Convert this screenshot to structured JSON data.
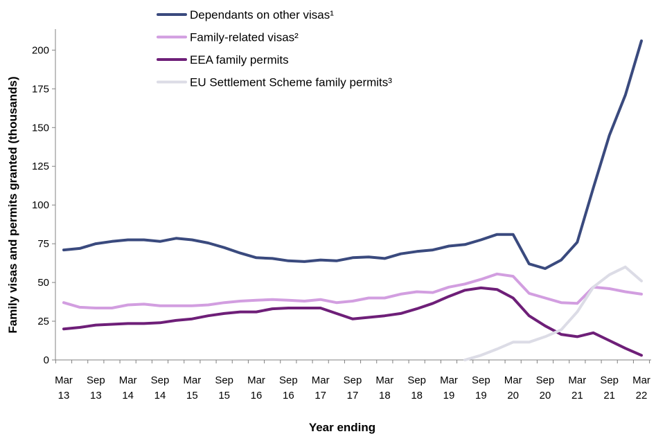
{
  "chart_data": {
    "type": "line",
    "xlabel": "Year ending",
    "ylabel": "Family visas and permits granted (thousands)",
    "ylim": [
      0,
      210
    ],
    "yticks": [
      0,
      25,
      50,
      75,
      100,
      125,
      150,
      175,
      200
    ],
    "grid": false,
    "legend_position": "top-left",
    "x": [
      "Mar 13",
      "Jun 13",
      "Sep 13",
      "Dec 13",
      "Mar 14",
      "Jun 14",
      "Sep 14",
      "Dec 14",
      "Mar 15",
      "Jun 15",
      "Sep 15",
      "Dec 15",
      "Mar 16",
      "Jun 16",
      "Sep 16",
      "Dec 16",
      "Mar 17",
      "Jun 17",
      "Sep 17",
      "Dec 17",
      "Mar 18",
      "Jun 18",
      "Sep 18",
      "Dec 18",
      "Mar 19",
      "Jun 19",
      "Sep 19",
      "Dec 19",
      "Mar 20",
      "Jun 20",
      "Sep 20",
      "Dec 20",
      "Mar 21",
      "Jun 21",
      "Sep 21",
      "Dec 21",
      "Mar 22"
    ],
    "x_tick_labels": [
      {
        "month": "Mar",
        "year": "13"
      },
      {
        "month": "Sep",
        "year": "13"
      },
      {
        "month": "Mar",
        "year": "14"
      },
      {
        "month": "Sep",
        "year": "14"
      },
      {
        "month": "Mar",
        "year": "15"
      },
      {
        "month": "Sep",
        "year": "15"
      },
      {
        "month": "Mar",
        "year": "16"
      },
      {
        "month": "Sep",
        "year": "16"
      },
      {
        "month": "Mar",
        "year": "17"
      },
      {
        "month": "Sep",
        "year": "17"
      },
      {
        "month": "Mar",
        "year": "18"
      },
      {
        "month": "Sep",
        "year": "18"
      },
      {
        "month": "Mar",
        "year": "19"
      },
      {
        "month": "Sep",
        "year": "19"
      },
      {
        "month": "Mar",
        "year": "20"
      },
      {
        "month": "Sep",
        "year": "20"
      },
      {
        "month": "Mar",
        "year": "21"
      },
      {
        "month": "Sep",
        "year": "21"
      },
      {
        "month": "Mar",
        "year": "22"
      }
    ],
    "series": [
      {
        "name": "Dependants on other visas¹",
        "color": "#3a4a7e",
        "values": [
          71,
          72,
          75,
          76.5,
          77.5,
          77.5,
          76.5,
          78.5,
          77.5,
          75.5,
          72.5,
          69,
          66,
          65.5,
          64,
          63.5,
          64.5,
          64,
          66,
          66.5,
          65.5,
          68.5,
          70,
          71,
          73.5,
          74.5,
          77.5,
          81,
          81,
          62,
          59,
          64.5,
          76,
          111,
          145,
          171,
          206
        ]
      },
      {
        "name": "Family-related visas²",
        "color": "#d29ee0",
        "values": [
          37,
          34,
          33.5,
          33.5,
          35.5,
          36,
          35,
          35,
          35,
          35.5,
          37,
          38,
          38.5,
          39,
          38.5,
          38,
          39,
          37,
          38,
          40,
          40,
          42.5,
          44,
          43.5,
          47,
          49,
          52,
          55.5,
          54,
          43,
          40,
          37,
          36.5,
          47,
          46,
          44,
          42.5
        ]
      },
      {
        "name": "EEA family permits",
        "color": "#6e1f78",
        "values": [
          20,
          21,
          22.5,
          23,
          23.5,
          23.5,
          24,
          25.5,
          26.5,
          28.5,
          30,
          31,
          31,
          33,
          33.5,
          33.5,
          33.5,
          30,
          26.5,
          27.5,
          28.5,
          30,
          33,
          36.5,
          41,
          45,
          46.5,
          45.5,
          40,
          28.5,
          22,
          16.5,
          15,
          17.5,
          12.5,
          7.5,
          3
        ]
      },
      {
        "name": "EU Settlement Scheme family permits³",
        "color": "#dcdce6",
        "values": [
          null,
          null,
          null,
          null,
          null,
          null,
          null,
          null,
          null,
          null,
          null,
          null,
          null,
          null,
          null,
          null,
          null,
          null,
          null,
          null,
          null,
          null,
          null,
          null,
          null,
          0,
          3,
          7,
          11.5,
          11.5,
          15,
          19.5,
          31,
          47,
          55,
          60,
          51
        ]
      }
    ]
  }
}
